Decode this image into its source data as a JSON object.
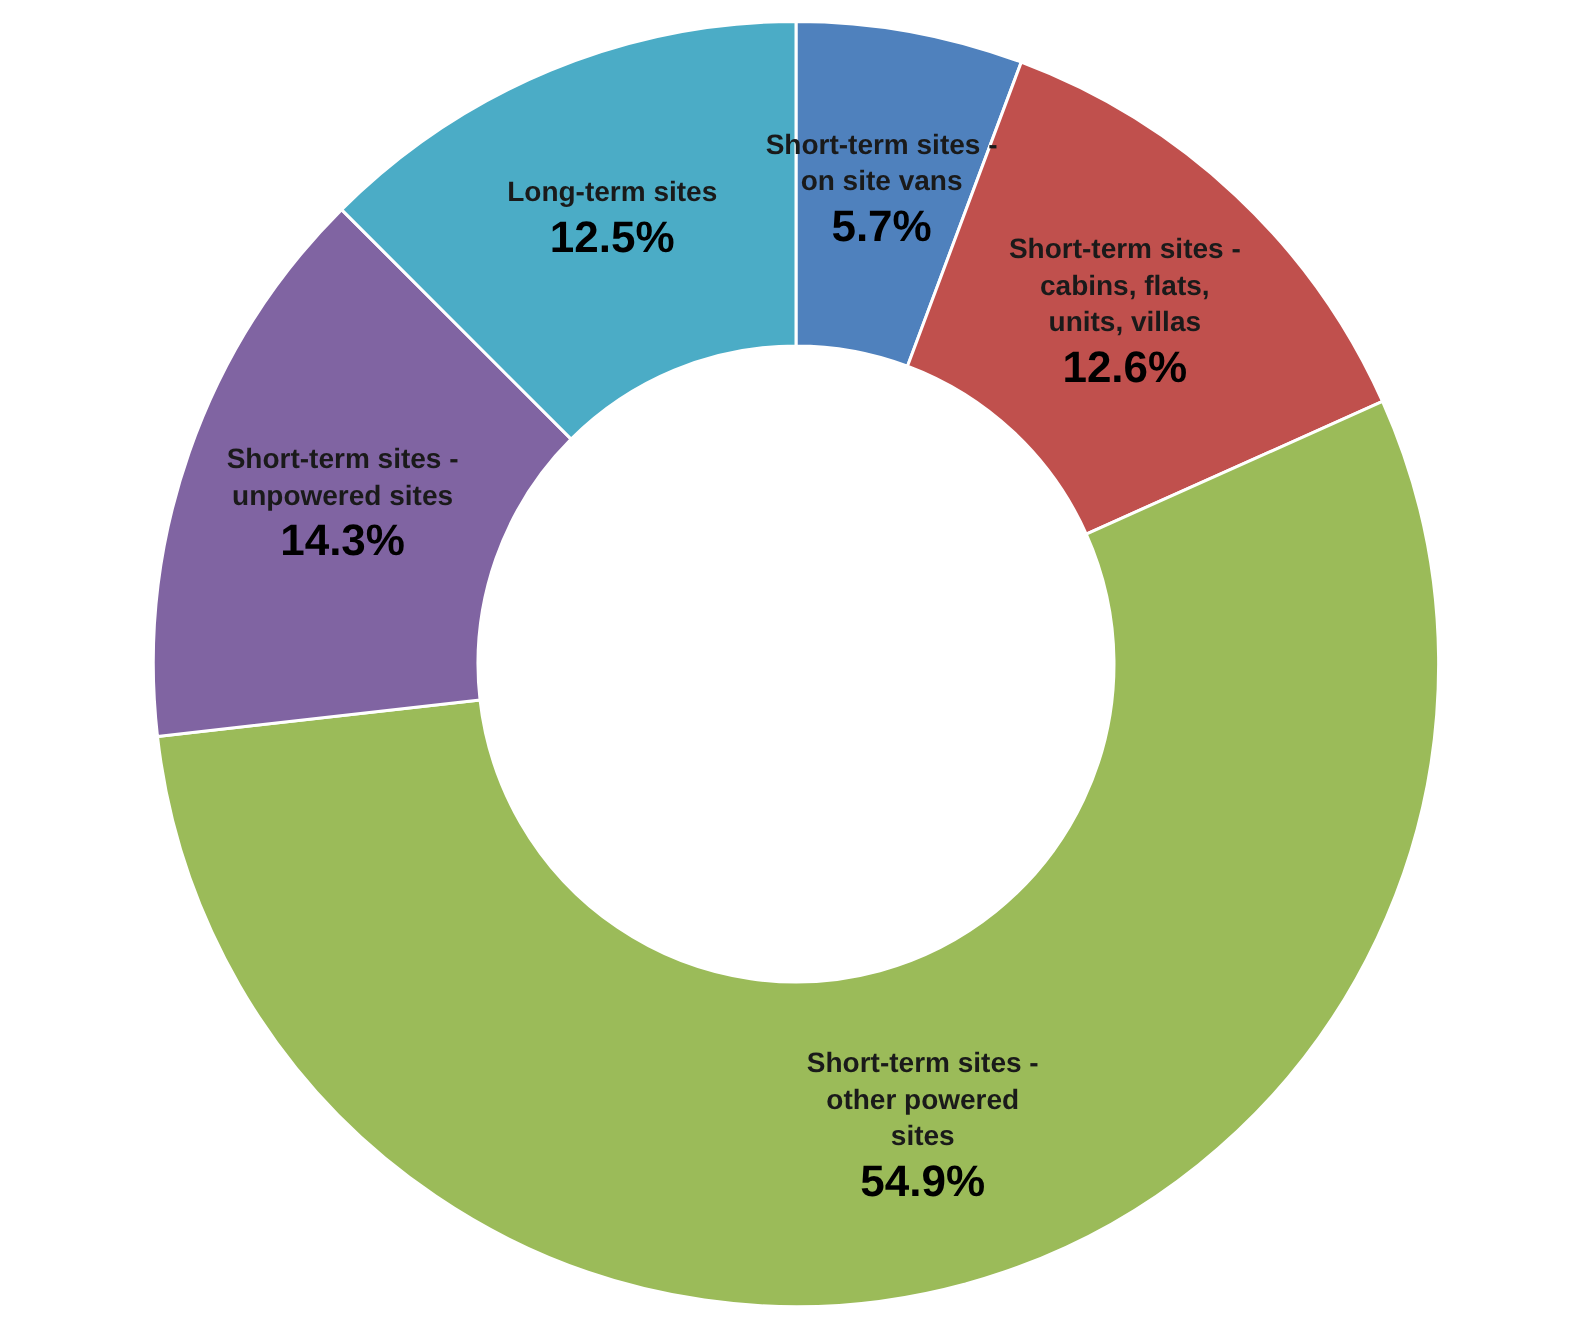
{
  "chart_data": {
    "type": "donut",
    "categories": [
      "Short-term sites - on site vans",
      "Short-term sites - cabins, flats, units, villas",
      "Short-term sites - other powered sites",
      "Short-term sites - unpowered sites",
      "Long-term sites"
    ],
    "values": [
      5.7,
      12.6,
      54.9,
      14.3,
      12.5
    ],
    "colors": [
      "#4f81bd",
      "#c0504d",
      "#9bbb59",
      "#8064a2",
      "#4bacc6"
    ],
    "value_labels": [
      "5.7%",
      "12.6%",
      "54.9%",
      "14.3%",
      "12.5%"
    ]
  }
}
